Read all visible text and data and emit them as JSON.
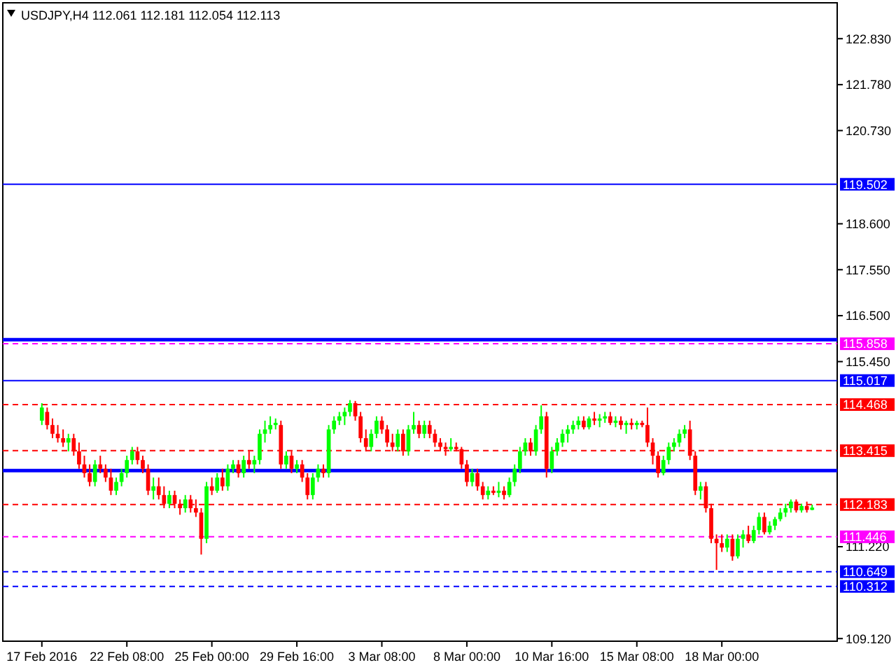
{
  "chart_data": {
    "type": "candlestick",
    "title": "USDJPY,H4  112.061 112.181 112.054 112.113",
    "categories": [
      "17 Feb 2016",
      null,
      null,
      null,
      null,
      null,
      null,
      null,
      null,
      null,
      null,
      null,
      null,
      null,
      null,
      null,
      "22 Feb 08:00",
      null,
      null,
      null,
      null,
      null,
      null,
      null,
      null,
      null,
      null,
      null,
      null,
      null,
      null,
      null,
      "25 Feb 00:00",
      null,
      null,
      null,
      null,
      null,
      null,
      null,
      null,
      null,
      null,
      null,
      null,
      null,
      null,
      null,
      "29 Feb 16:00",
      null,
      null,
      null,
      null,
      null,
      null,
      null,
      null,
      null,
      null,
      null,
      null,
      null,
      null,
      null,
      "3 Mar 08:00",
      null,
      null,
      null,
      null,
      null,
      null,
      null,
      null,
      null,
      null,
      null,
      null,
      null,
      null,
      null,
      "8 Mar 00:00",
      null,
      null,
      null,
      null,
      null,
      null,
      null,
      null,
      null,
      null,
      null,
      null,
      null,
      null,
      null,
      "10 Mar 16:00",
      null,
      null,
      null,
      null,
      null,
      null,
      null,
      null,
      null,
      null,
      null,
      null,
      null,
      null,
      null,
      "15 Mar 08:00",
      null,
      null,
      null,
      null,
      null,
      null,
      null,
      null,
      null,
      null,
      null,
      null,
      null,
      null,
      null,
      "18 Mar 00:00",
      null,
      null,
      null,
      null,
      null,
      null,
      null,
      null,
      null,
      null,
      null,
      null,
      null,
      null,
      null,
      null,
      null
    ],
    "ohlc": [
      [
        114.1,
        114.5,
        114.0,
        114.4
      ],
      [
        114.3,
        114.4,
        113.9,
        114.0
      ],
      [
        114.0,
        114.15,
        113.7,
        113.8
      ],
      [
        113.8,
        114.0,
        113.6,
        113.7
      ],
      [
        113.7,
        113.9,
        113.5,
        113.6
      ],
      [
        113.6,
        113.8,
        113.4,
        113.7
      ],
      [
        113.7,
        113.8,
        113.3,
        113.4
      ],
      [
        113.4,
        113.6,
        113.0,
        113.1
      ],
      [
        113.1,
        113.3,
        112.8,
        112.9
      ],
      [
        112.9,
        113.1,
        112.6,
        112.7
      ],
      [
        112.7,
        113.2,
        112.6,
        113.1
      ],
      [
        113.1,
        113.3,
        112.9,
        113.0
      ],
      [
        113.0,
        113.1,
        112.7,
        112.8
      ],
      [
        112.8,
        113.0,
        112.4,
        112.5
      ],
      [
        112.5,
        112.8,
        112.4,
        112.7
      ],
      [
        112.7,
        113.0,
        112.6,
        112.9
      ],
      [
        112.9,
        113.3,
        112.8,
        113.2
      ],
      [
        113.2,
        113.5,
        113.1,
        113.4
      ],
      [
        113.4,
        113.5,
        113.1,
        113.2
      ],
      [
        113.2,
        113.3,
        112.9,
        113.0
      ],
      [
        113.0,
        113.1,
        112.4,
        112.5
      ],
      [
        112.5,
        112.8,
        112.3,
        112.6
      ],
      [
        112.6,
        112.8,
        112.3,
        112.4
      ],
      [
        112.4,
        112.6,
        112.1,
        112.2
      ],
      [
        112.2,
        112.5,
        112.1,
        112.4
      ],
      [
        112.4,
        112.5,
        112.1,
        112.2
      ],
      [
        112.2,
        112.3,
        111.95,
        112.1
      ],
      [
        112.1,
        112.4,
        112.0,
        112.3
      ],
      [
        112.3,
        112.4,
        112.0,
        112.1
      ],
      [
        112.1,
        112.3,
        111.9,
        112.0
      ],
      [
        112.0,
        112.1,
        111.04,
        111.4
      ],
      [
        111.4,
        112.7,
        111.3,
        112.6
      ],
      [
        112.6,
        112.8,
        112.4,
        112.5
      ],
      [
        112.5,
        112.9,
        112.45,
        112.8
      ],
      [
        112.8,
        113.0,
        112.5,
        112.6
      ],
      [
        112.6,
        113.1,
        112.5,
        113.0
      ],
      [
        113.0,
        113.2,
        112.9,
        113.1
      ],
      [
        113.1,
        113.2,
        112.8,
        112.9
      ],
      [
        112.9,
        113.3,
        112.8,
        113.2
      ],
      [
        113.2,
        113.4,
        113.0,
        113.1
      ],
      [
        113.1,
        113.3,
        112.9,
        113.2
      ],
      [
        113.2,
        113.9,
        113.1,
        113.8
      ],
      [
        113.8,
        114.1,
        113.6,
        113.9
      ],
      [
        113.9,
        114.2,
        113.8,
        114.0
      ],
      [
        114.0,
        114.15,
        113.9,
        114.05
      ],
      [
        114.0,
        114.1,
        113.0,
        113.1
      ],
      [
        113.1,
        113.4,
        113.0,
        113.3
      ],
      [
        113.3,
        113.4,
        112.9,
        113.0
      ],
      [
        113.0,
        113.2,
        112.9,
        113.1
      ],
      [
        113.1,
        113.2,
        112.7,
        112.8
      ],
      [
        112.8,
        112.9,
        112.3,
        112.4
      ],
      [
        112.4,
        112.9,
        112.3,
        112.8
      ],
      [
        112.8,
        113.1,
        112.7,
        113.0
      ],
      [
        113.0,
        113.1,
        112.8,
        112.9
      ],
      [
        112.9,
        114.0,
        112.8,
        113.9
      ],
      [
        113.9,
        114.2,
        113.8,
        114.1
      ],
      [
        114.1,
        114.3,
        114.0,
        114.2
      ],
      [
        114.2,
        114.4,
        114.0,
        114.3
      ],
      [
        114.3,
        114.57,
        114.2,
        114.5
      ],
      [
        114.5,
        114.55,
        114.1,
        114.2
      ],
      [
        114.2,
        114.3,
        113.6,
        113.7
      ],
      [
        113.7,
        113.9,
        113.4,
        113.5
      ],
      [
        113.5,
        113.9,
        113.4,
        113.8
      ],
      [
        113.8,
        114.2,
        113.7,
        114.1
      ],
      [
        114.1,
        114.2,
        113.8,
        113.9
      ],
      [
        113.9,
        114.0,
        113.5,
        113.6
      ],
      [
        113.6,
        113.8,
        113.4,
        113.5
      ],
      [
        113.5,
        113.9,
        113.4,
        113.8
      ],
      [
        113.8,
        113.9,
        113.3,
        113.4
      ],
      [
        113.4,
        114.0,
        113.3,
        113.9
      ],
      [
        113.9,
        114.3,
        113.8,
        114.0
      ],
      [
        114.0,
        114.1,
        113.7,
        113.8
      ],
      [
        113.8,
        114.1,
        113.7,
        114.0
      ],
      [
        114.0,
        114.1,
        113.7,
        113.8
      ],
      [
        113.8,
        113.9,
        113.5,
        113.6
      ],
      [
        113.6,
        113.7,
        113.4,
        113.5
      ],
      [
        113.5,
        113.6,
        113.3,
        113.45
      ],
      [
        113.45,
        113.7,
        113.4,
        113.5
      ],
      [
        113.5,
        113.6,
        113.4,
        113.45
      ],
      [
        113.45,
        113.5,
        113.0,
        113.1
      ],
      [
        113.1,
        113.2,
        112.6,
        112.7
      ],
      [
        112.7,
        113.0,
        112.6,
        112.9
      ],
      [
        112.9,
        113.0,
        112.5,
        112.6
      ],
      [
        112.6,
        112.7,
        112.3,
        112.4
      ],
      [
        112.4,
        112.6,
        112.3,
        112.5
      ],
      [
        112.5,
        112.6,
        112.4,
        112.45
      ],
      [
        112.45,
        112.7,
        112.35,
        112.5
      ],
      [
        112.5,
        112.6,
        112.3,
        112.4
      ],
      [
        112.4,
        112.8,
        112.35,
        112.7
      ],
      [
        112.7,
        113.1,
        112.6,
        113.0
      ],
      [
        113.0,
        113.5,
        112.9,
        113.4
      ],
      [
        113.4,
        113.7,
        113.3,
        113.6
      ],
      [
        113.6,
        113.7,
        113.3,
        113.4
      ],
      [
        113.4,
        114.0,
        113.3,
        113.9
      ],
      [
        113.9,
        114.45,
        113.8,
        114.2
      ],
      [
        114.2,
        114.3,
        112.8,
        113.0
      ],
      [
        113.0,
        113.5,
        112.9,
        113.4
      ],
      [
        113.4,
        113.7,
        113.3,
        113.6
      ],
      [
        113.6,
        113.9,
        113.5,
        113.8
      ],
      [
        113.8,
        114.0,
        113.6,
        113.9
      ],
      [
        113.9,
        114.1,
        113.8,
        114.0
      ],
      [
        114.0,
        114.2,
        113.9,
        114.1
      ],
      [
        114.1,
        114.2,
        113.9,
        113.95
      ],
      [
        113.95,
        114.2,
        113.9,
        114.15
      ],
      [
        114.15,
        114.3,
        114.0,
        114.1
      ],
      [
        114.1,
        114.25,
        113.95,
        114.15
      ],
      [
        114.15,
        114.3,
        114.05,
        114.2
      ],
      [
        114.2,
        114.3,
        114.0,
        114.05
      ],
      [
        114.05,
        114.2,
        113.95,
        114.1
      ],
      [
        114.1,
        114.2,
        113.9,
        114.0
      ],
      [
        114.0,
        114.1,
        113.8,
        114.05
      ],
      [
        114.05,
        114.15,
        113.9,
        114.0
      ],
      [
        114.0,
        114.1,
        113.9,
        114.05
      ],
      [
        114.05,
        114.1,
        113.95,
        114.0
      ],
      [
        114.0,
        114.4,
        113.5,
        113.6
      ],
      [
        113.6,
        113.7,
        113.1,
        113.3
      ],
      [
        113.3,
        113.4,
        112.8,
        112.9
      ],
      [
        112.9,
        113.3,
        112.85,
        113.2
      ],
      [
        113.2,
        113.6,
        113.1,
        113.5
      ],
      [
        113.5,
        113.7,
        113.4,
        113.6
      ],
      [
        113.6,
        113.9,
        113.5,
        113.8
      ],
      [
        113.8,
        114.0,
        113.7,
        113.9
      ],
      [
        113.9,
        114.1,
        113.2,
        113.3
      ],
      [
        113.3,
        113.4,
        112.4,
        112.5
      ],
      [
        112.5,
        112.7,
        112.3,
        112.6
      ],
      [
        112.6,
        112.7,
        112.0,
        112.1
      ],
      [
        112.1,
        112.2,
        111.3,
        111.4
      ],
      [
        111.4,
        111.5,
        110.69,
        111.3
      ],
      [
        111.3,
        111.5,
        111.1,
        111.2
      ],
      [
        111.2,
        111.5,
        111.1,
        111.4
      ],
      [
        111.4,
        111.5,
        110.9,
        111.0
      ],
      [
        111.0,
        111.5,
        110.95,
        111.4
      ],
      [
        111.4,
        111.6,
        111.2,
        111.5
      ],
      [
        111.5,
        111.7,
        111.3,
        111.35
      ],
      [
        111.35,
        111.7,
        111.3,
        111.6
      ],
      [
        111.6,
        112.0,
        111.5,
        111.9
      ],
      [
        111.9,
        112.0,
        111.5,
        111.55
      ],
      [
        111.55,
        111.8,
        111.5,
        111.7
      ],
      [
        111.7,
        111.9,
        111.6,
        111.85
      ],
      [
        111.85,
        112.1,
        111.8,
        112.0
      ],
      [
        112.0,
        112.2,
        111.9,
        112.1
      ],
      [
        112.1,
        112.3,
        112.0,
        112.25
      ],
      [
        112.25,
        112.3,
        112.0,
        112.05
      ],
      [
        112.05,
        112.2,
        112.0,
        112.15
      ],
      [
        112.15,
        112.25,
        112.0,
        112.06
      ],
      [
        112.061,
        112.181,
        112.054,
        112.113
      ]
    ],
    "colors": [
      "#00ff00",
      "#ff0000",
      "#ff0000",
      "#ff0000",
      "#ff0000",
      "#00ff00",
      "#ff0000",
      "#ff0000",
      "#ff0000",
      "#ff0000",
      "#00ff00",
      "#ff0000",
      "#ff0000",
      "#ff0000",
      "#00ff00",
      "#00ff00",
      "#00ff00",
      "#00ff00",
      "#ff0000",
      "#ff0000",
      "#ff0000",
      "#00ff00",
      "#ff0000",
      "#ff0000",
      "#00ff00",
      "#ff0000",
      "#ff0000",
      "#00ff00",
      "#ff0000",
      "#ff0000",
      "#ff0000",
      "#00ff00",
      "#ff0000",
      "#00ff00",
      "#ff0000",
      "#00ff00",
      "#00ff00",
      "#ff0000",
      "#00ff00",
      "#ff0000",
      "#00ff00",
      "#00ff00",
      "#00ff00",
      "#00ff00",
      "#00ff00",
      "#ff0000",
      "#00ff00",
      "#ff0000",
      "#00ff00",
      "#ff0000",
      "#ff0000",
      "#00ff00",
      "#00ff00",
      "#ff0000",
      "#00ff00",
      "#00ff00",
      "#00ff00",
      "#00ff00",
      "#00ff00",
      "#ff0000",
      "#ff0000",
      "#ff0000",
      "#00ff00",
      "#00ff00",
      "#ff0000",
      "#ff0000",
      "#ff0000",
      "#00ff00",
      "#ff0000",
      "#00ff00",
      "#00ff00",
      "#ff0000",
      "#00ff00",
      "#ff0000",
      "#ff0000",
      "#ff0000",
      "#ff0000",
      "#00ff00",
      "#ff0000",
      "#ff0000",
      "#ff0000",
      "#00ff00",
      "#ff0000",
      "#ff0000",
      "#00ff00",
      "#ff0000",
      "#00ff00",
      "#ff0000",
      "#00ff00",
      "#00ff00",
      "#00ff00",
      "#00ff00",
      "#ff0000",
      "#00ff00",
      "#00ff00",
      "#ff0000",
      "#00ff00",
      "#00ff00",
      "#00ff00",
      "#00ff00",
      "#00ff00",
      "#00ff00",
      "#ff0000",
      "#00ff00",
      "#ff0000",
      "#00ff00",
      "#00ff00",
      "#ff0000",
      "#00ff00",
      "#ff0000",
      "#00ff00",
      "#ff0000",
      "#00ff00",
      "#ff0000",
      "#ff0000",
      "#ff0000",
      "#ff0000",
      "#00ff00",
      "#00ff00",
      "#00ff00",
      "#00ff00",
      "#00ff00",
      "#ff0000",
      "#ff0000",
      "#00ff00",
      "#ff0000",
      "#ff0000",
      "#ff0000",
      "#ff0000",
      "#00ff00",
      "#ff0000",
      "#00ff00",
      "#00ff00",
      "#ff0000",
      "#00ff00",
      "#00ff00",
      "#ff0000",
      "#00ff00",
      "#00ff00",
      "#00ff00",
      "#00ff00",
      "#00ff00",
      "#ff0000",
      "#00ff00",
      "#ff0000",
      "#00ff00"
    ],
    "ylim": [
      109.06,
      123.65
    ],
    "yticks": [
      {
        "value": 109.12,
        "label": "109.120"
      },
      {
        "value": 111.22,
        "label": "111.220"
      },
      {
        "value": 115.45,
        "label": "115.450"
      },
      {
        "value": 116.5,
        "label": "116.500"
      },
      {
        "value": 117.55,
        "label": "117.550"
      },
      {
        "value": 118.6,
        "label": "118.600"
      },
      {
        "value": 120.73,
        "label": "120.730"
      },
      {
        "value": 121.78,
        "label": "121.780"
      },
      {
        "value": 122.83,
        "label": "122.830"
      }
    ],
    "ref_lines": [
      {
        "axis": "y",
        "value": 119.502,
        "label": "119.502",
        "color": "#0000ff",
        "line_style": "solid"
      },
      {
        "axis": "y",
        "value": 115.95,
        "label": null,
        "color": "#0000ff",
        "line_style": "solid"
      },
      {
        "axis": "y",
        "value": 115.858,
        "label": "115.858",
        "color": "#ff00ff",
        "line_style": "dashed"
      },
      {
        "axis": "y",
        "value": 115.017,
        "label": "115.017",
        "color": "#0000ff",
        "line_style": "solid"
      },
      {
        "axis": "y",
        "value": 114.468,
        "label": "114.468",
        "color": "#ff0000",
        "line_style": "dashed"
      },
      {
        "axis": "y",
        "value": 113.415,
        "label": "113.415",
        "color": "#ff0000",
        "line_style": "dashed"
      },
      {
        "axis": "y",
        "value": 112.96,
        "label": null,
        "color": "#0000ff",
        "line_style": "solid"
      },
      {
        "axis": "y",
        "value": 112.183,
        "label": "112.183",
        "color": "#ff0000",
        "line_style": "dashed"
      },
      {
        "axis": "y",
        "value": 111.446,
        "label": "111.446",
        "color": "#ff00ff",
        "line_style": "dashed"
      },
      {
        "axis": "y",
        "value": 110.649,
        "label": "110.649",
        "color": "#0000ff",
        "line_style": "dashed"
      },
      {
        "axis": "y",
        "value": 110.312,
        "label": "110.312",
        "color": "#0000ff",
        "line_style": "dashed"
      }
    ],
    "grid": false
  }
}
